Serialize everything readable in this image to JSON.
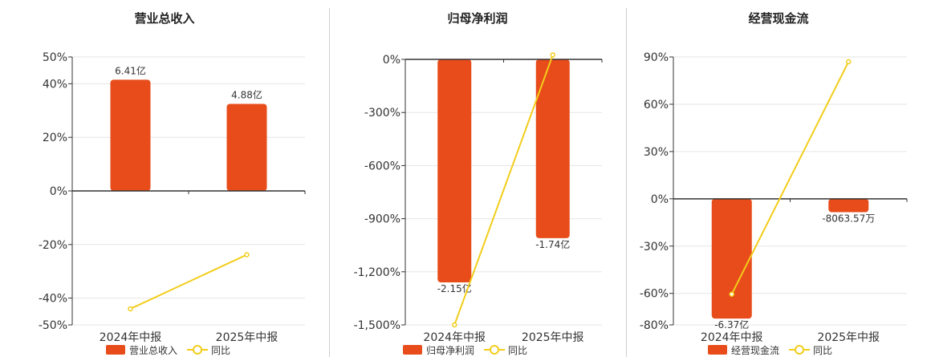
{
  "colors": {
    "bar": "#e84c1b",
    "line": "#f2cd1a",
    "grid": "#e6e6e6",
    "axis": "#333333",
    "divider": "#cfcfcf"
  },
  "chart_data": [
    {
      "type": "bar",
      "title": "营业总收入",
      "categories": [
        "2024年中报",
        "2025年中报"
      ],
      "ylim": [
        -50,
        50
      ],
      "yticks": [
        50,
        40,
        20,
        0,
        -20,
        -40,
        -50
      ],
      "ytick_labels": [
        "50%",
        "40%",
        "20%",
        "0%",
        "-20%",
        "-40%",
        "-50%"
      ],
      "series": [
        {
          "name": "营业总收入",
          "kind": "bar",
          "values": [
            41.5,
            32.5
          ],
          "labels": [
            "6.41亿",
            "4.88亿"
          ]
        },
        {
          "name": "同比",
          "kind": "line",
          "values": [
            -44,
            -23.8
          ]
        }
      ],
      "legend": [
        "营业总收入",
        "同比"
      ],
      "grid": true
    },
    {
      "type": "bar",
      "title": "归母净利润",
      "categories": [
        "2024年中报",
        "2025年中报"
      ],
      "ylim": [
        -1500,
        0
      ],
      "yticks": [
        0,
        -300,
        -600,
        -900,
        -1200,
        -1500
      ],
      "ytick_labels": [
        "0%",
        "-300%",
        "-600%",
        "-900%",
        "-1,200%",
        "-1,500%"
      ],
      "series": [
        {
          "name": "归母净利润",
          "kind": "bar",
          "values": [
            -1260,
            -1010
          ],
          "labels": [
            "-2.15亿",
            "-1.74亿"
          ]
        },
        {
          "name": "同比",
          "kind": "line",
          "values": [
            -1500,
            25
          ]
        }
      ],
      "legend": [
        "归母净利润",
        "同比"
      ],
      "grid": true
    },
    {
      "type": "bar",
      "title": "经营现金流",
      "categories": [
        "2024年中报",
        "2025年中报"
      ],
      "ylim": [
        -80,
        90
      ],
      "yticks": [
        90,
        60,
        30,
        0,
        -30,
        -60,
        -80
      ],
      "ytick_labels": [
        "90%",
        "60%",
        "30%",
        "0%",
        "-30%",
        "-60%",
        "-80%"
      ],
      "series": [
        {
          "name": "经营现金流",
          "kind": "bar",
          "values": [
            -76,
            -8.5
          ],
          "labels": [
            "-6.37亿",
            "-8063.57万"
          ]
        },
        {
          "name": "同比",
          "kind": "line",
          "values": [
            -60.5,
            87
          ]
        }
      ],
      "legend": [
        "经营现金流",
        "同比"
      ],
      "grid": true
    }
  ]
}
